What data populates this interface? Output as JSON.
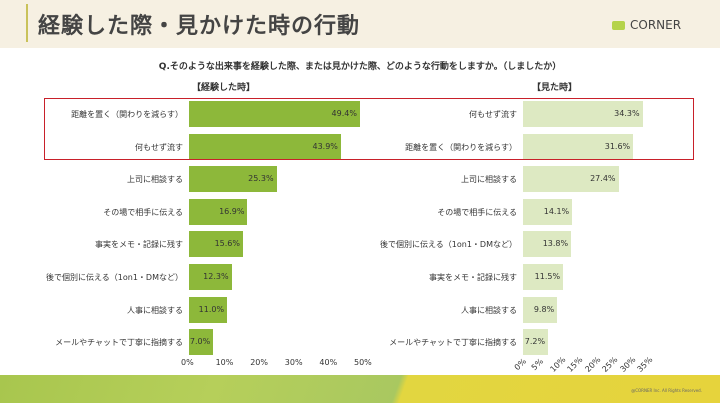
{
  "header": {
    "title": "経験した際・見かけた時の行動",
    "logo": "CORNER"
  },
  "question": "Q.そのような出来事を経験した際、または見かけた際、どのような行動をしますか。（しましたか）",
  "footer": {
    "copyright": "@CORNER Inc. All Rights Reserved."
  },
  "colors": {
    "left_bar": "#8db83a",
    "right_bar": "#dde9c2",
    "highlight_box": "#c8202a"
  },
  "chart_data": [
    {
      "type": "bar",
      "orientation": "horizontal",
      "title": "【経験した時】",
      "categories": [
        "距離を置く（関わりを減らす）",
        "何もせず流す",
        "上司に相談する",
        "その場で相手に伝える",
        "事実をメモ・記録に残す",
        "後で個別に伝える（1on1・DMなど）",
        "人事に相談する",
        "メールやチャットで丁寧に指摘する"
      ],
      "values": [
        49.4,
        43.9,
        25.3,
        16.9,
        15.6,
        12.3,
        11.0,
        7.0
      ],
      "labels": [
        "49.4%",
        "43.9%",
        "25.3%",
        "16.9%",
        "15.6%",
        "12.3%",
        "11.0%",
        "7.0%"
      ],
      "xlim": [
        0,
        50
      ],
      "ticks": [
        "0%",
        "10%",
        "20%",
        "30%",
        "40%",
        "50%"
      ],
      "grid": false
    },
    {
      "type": "bar",
      "orientation": "horizontal",
      "title": "【見た時】",
      "categories": [
        "何もせず流す",
        "距離を置く（関わりを減らす）",
        "上司に相談する",
        "その場で相手に伝える",
        "後で個別に伝える（1on1・DMなど）",
        "事実をメモ・記録に残す",
        "人事に相談する",
        "メールやチャットで丁寧に指摘する"
      ],
      "values": [
        34.3,
        31.6,
        27.4,
        14.1,
        13.8,
        11.5,
        9.8,
        7.2
      ],
      "labels": [
        "34.3%",
        "31.6%",
        "27.4%",
        "14.1%",
        "13.8%",
        "11.5%",
        "9.8%",
        "7.2%"
      ],
      "xlim": [
        0,
        35
      ],
      "ticks": [
        "0%",
        "5%",
        "10%",
        "15%",
        "20%",
        "25%",
        "30%",
        "35%"
      ],
      "grid": false
    }
  ]
}
